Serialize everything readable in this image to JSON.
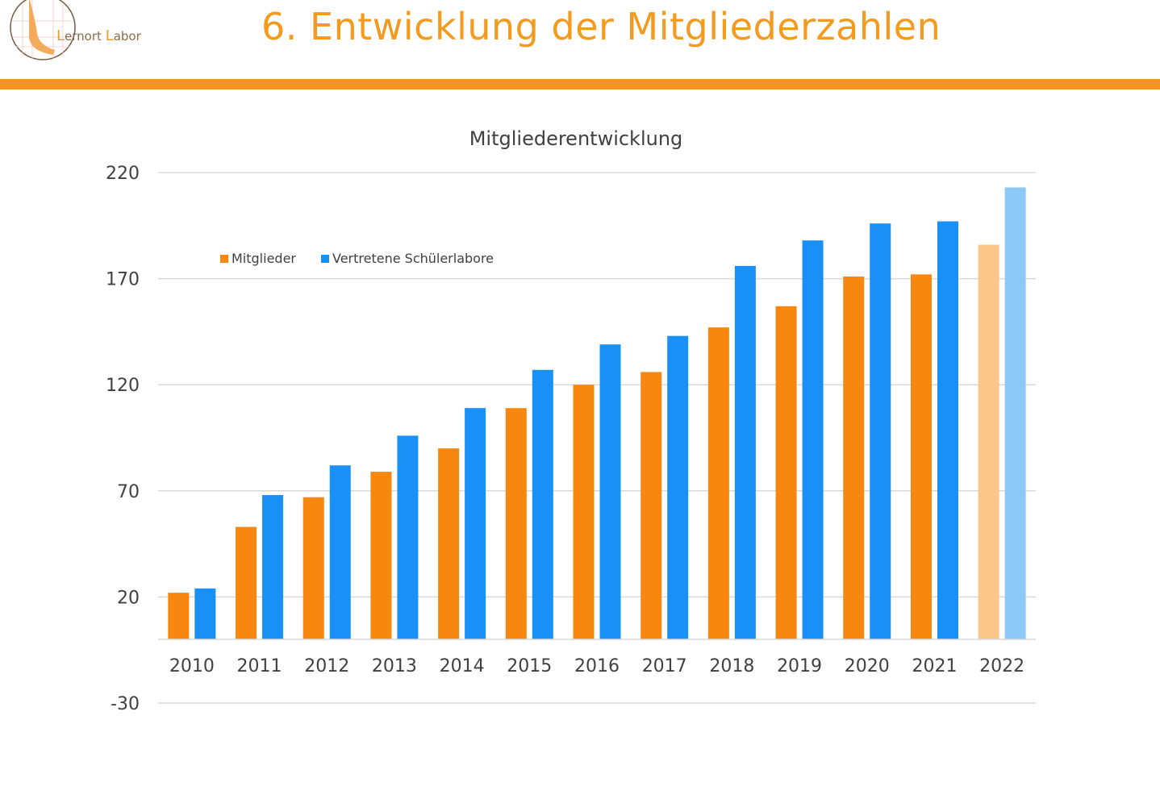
{
  "header": {
    "title": "6. Entwicklung der Mitgliederzahlen",
    "logo_prefix": "L",
    "logo_word1": "ernort",
    "logo_word2_initial": "L",
    "logo_word2": "abor"
  },
  "colors": {
    "accent": "#f7941d",
    "mitglieder": "#f7870f",
    "schuelerlabore": "#1890f5",
    "mitglieder_light": "#fcc68b",
    "schuelerlabore_light": "#8cc8f8",
    "grid": "#d9d9d9"
  },
  "chart_data": {
    "type": "bar",
    "title": "Mitgliederentwicklung",
    "xlabel": "",
    "ylabel": "",
    "categories": [
      "2010",
      "2011",
      "2012",
      "2013",
      "2014",
      "2015",
      "2016",
      "2017",
      "2018",
      "2019",
      "2020",
      "2021",
      "2022"
    ],
    "series": [
      {
        "name": "Mitglieder",
        "values": [
          22,
          53,
          67,
          79,
          90,
          109,
          120,
          126,
          147,
          157,
          171,
          172,
          186
        ]
      },
      {
        "name": "Vertretene Schülerlabore",
        "values": [
          24,
          68,
          82,
          96,
          109,
          127,
          139,
          143,
          176,
          188,
          196,
          197,
          213
        ]
      }
    ],
    "highlighted_category": "2022",
    "y_ticks": [
      -30,
      20,
      70,
      120,
      170,
      220
    ],
    "ylim": [
      -30,
      220
    ],
    "grid": true,
    "legend_position": "top-left"
  }
}
